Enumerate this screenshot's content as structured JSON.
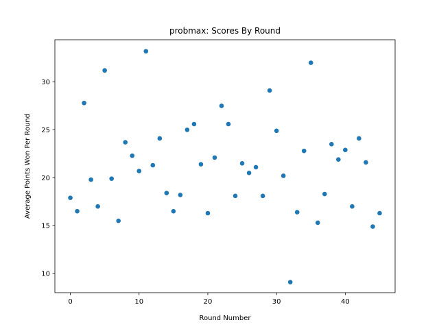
{
  "chart_data": {
    "type": "scatter",
    "title": "probmax: Scores By Round",
    "xlabel": "Round Number",
    "ylabel": "Average Points Won Per Round",
    "xlim": [
      -2.25,
      47.25
    ],
    "ylim": [
      8.0,
      34.4
    ],
    "xticks": [
      0,
      10,
      20,
      30,
      40
    ],
    "yticks": [
      10,
      15,
      20,
      25,
      30
    ],
    "grid": false,
    "color": "#1f77b4",
    "x": [
      0,
      1,
      2,
      3,
      4,
      5,
      6,
      7,
      8,
      9,
      10,
      11,
      12,
      13,
      14,
      15,
      16,
      17,
      18,
      19,
      20,
      21,
      22,
      23,
      24,
      25,
      26,
      27,
      28,
      29,
      30,
      31,
      32,
      33,
      34,
      35,
      36,
      37,
      38,
      39,
      40,
      41,
      42,
      43,
      44,
      45
    ],
    "y": [
      17.9,
      16.5,
      27.8,
      19.8,
      17.0,
      31.2,
      19.9,
      15.5,
      23.7,
      22.3,
      20.7,
      33.2,
      21.3,
      24.1,
      18.4,
      16.5,
      18.2,
      25.0,
      25.6,
      21.4,
      16.3,
      22.1,
      27.5,
      25.6,
      18.1,
      21.5,
      20.5,
      21.1,
      18.1,
      29.1,
      24.9,
      20.2,
      9.1,
      16.4,
      22.8,
      32.0,
      15.3,
      18.3,
      23.5,
      21.9,
      22.9,
      17.0,
      24.1,
      21.6,
      14.9,
      16.3
    ]
  }
}
